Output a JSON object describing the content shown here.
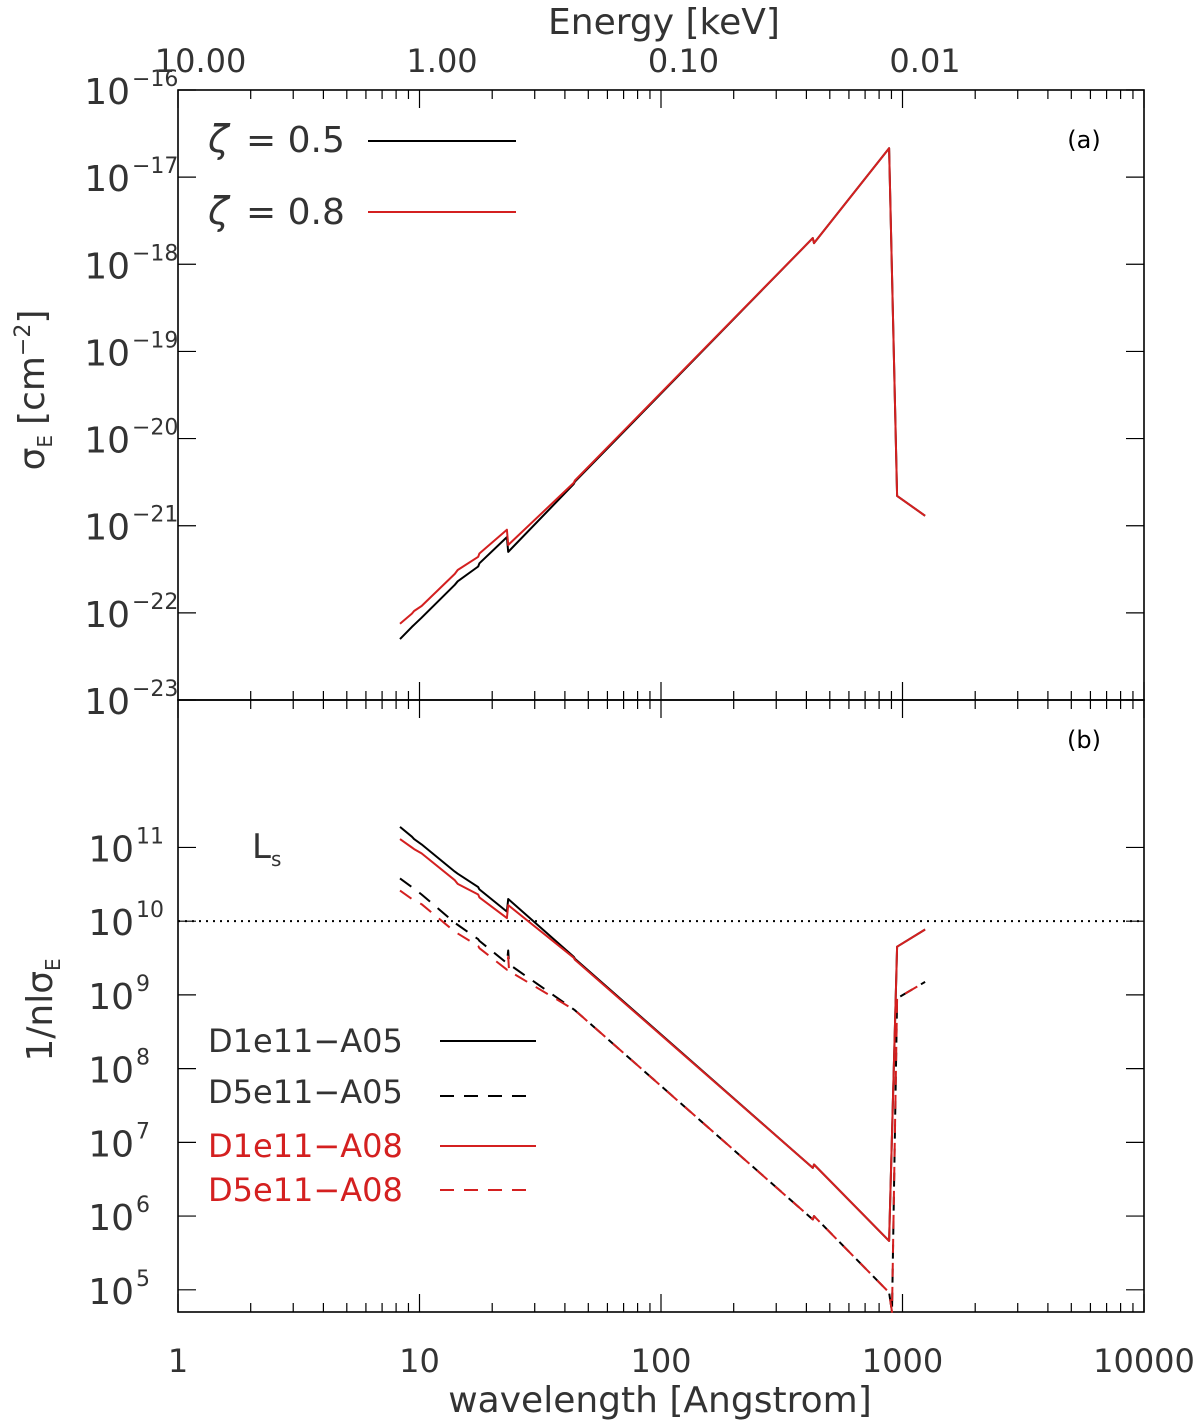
{
  "chart_data": [
    {
      "type": "line",
      "panel_label": "(a)",
      "x_axis_bottom": {
        "label": "wavelength [Angstrom]",
        "scale": "log",
        "range": [
          1,
          10000
        ],
        "tick_labels": [
          "1",
          "10",
          "100",
          "1000",
          "10000"
        ]
      },
      "x_axis_top": {
        "label": "Energy [keV]",
        "scale": "log",
        "tick_values": [
          10.0,
          1.0,
          0.1,
          0.01
        ],
        "tick_labels": [
          "10.00",
          "1.00",
          "0.10",
          "0.01"
        ]
      },
      "y_axis": {
        "label_main": "σ",
        "label_sub": "E",
        "label_unit": "[cm",
        "label_unit_sup": "−2",
        "label_unit_end": "]",
        "scale": "log",
        "range": [
          1e-23,
          1e-16
        ],
        "tick_exponents": [
          "−16",
          "−17",
          "−18",
          "−19",
          "−20",
          "−21",
          "−22",
          "−23"
        ]
      },
      "legend": [
        {
          "symbol": "ζ",
          "text": "= 0.5",
          "color": "#000000",
          "dash": "solid"
        },
        {
          "symbol": "ζ",
          "text": "= 0.8",
          "color": "#d42020",
          "dash": "solid"
        }
      ],
      "series": [
        {
          "name": "ζ = 0.5",
          "color": "#000000",
          "dash": "solid",
          "points": [
            [
              8.3,
              5e-23
            ],
            [
              9.3,
              6.9e-23
            ],
            [
              9.5,
              7.3e-23
            ],
            [
              10.2,
              8.8e-23
            ],
            [
              14.0,
              2.1e-22
            ],
            [
              14.4,
              2.3e-22
            ],
            [
              17.5,
              3.4e-22
            ],
            [
              17.7,
              3.7e-22
            ],
            [
              23.0,
              7.4e-22
            ],
            [
              23.3,
              5e-22
            ],
            [
              43.5,
              3e-21
            ],
            [
              44.0,
              3.2e-21
            ],
            [
              425,
              2e-18
            ],
            [
              430,
              1.75e-18
            ],
            [
              880,
              2.15e-17
            ],
            [
              950,
              2.2e-21
            ],
            [
              1240,
              1.3e-21
            ]
          ]
        },
        {
          "name": "ζ = 0.8",
          "color": "#d42020",
          "dash": "solid",
          "points": [
            [
              8.3,
              7.5e-23
            ],
            [
              9.3,
              9.8e-23
            ],
            [
              9.5,
              1.05e-22
            ],
            [
              10.2,
              1.2e-22
            ],
            [
              14.0,
              2.8e-22
            ],
            [
              14.4,
              3.1e-22
            ],
            [
              17.5,
              4.4e-22
            ],
            [
              17.7,
              4.8e-22
            ],
            [
              23.0,
              9e-22
            ],
            [
              23.3,
              6e-22
            ],
            [
              43.5,
              3.1e-21
            ],
            [
              44.0,
              3.3e-21
            ],
            [
              425,
              2e-18
            ],
            [
              430,
              1.75e-18
            ],
            [
              880,
              2.15e-17
            ],
            [
              950,
              2.2e-21
            ],
            [
              1240,
              1.3e-21
            ]
          ]
        }
      ]
    },
    {
      "type": "line",
      "panel_label": "(b)",
      "x_axis": {
        "label": "wavelength [Angstrom]",
        "scale": "log",
        "range": [
          1,
          10000
        ],
        "tick_labels": [
          "1",
          "10",
          "100",
          "1000",
          "10000"
        ]
      },
      "y_axis": {
        "label_main": "1/nlσ",
        "label_sub": "E",
        "scale": "log",
        "range": [
          50000,
          10000000000000
        ],
        "tick_exponents": [
          "11",
          "10",
          "9",
          "8",
          "7",
          "6",
          "5"
        ]
      },
      "reference_line": {
        "label": "L",
        "label_sub": "s",
        "y": 10000000000,
        "style": "dotted",
        "color": "#000000"
      },
      "legend": [
        {
          "text": "D1e11−A05",
          "color": "#000000",
          "dash": "solid"
        },
        {
          "text": "D5e11−A05",
          "color": "#000000",
          "dash": "dashed"
        },
        {
          "text": "D1e11−A08",
          "color": "#d42020",
          "dash": "solid"
        },
        {
          "text": "D5e11−A08",
          "color": "#d42020",
          "dash": "dashed"
        }
      ],
      "series": [
        {
          "name": "D1e11−A05",
          "color": "#000000",
          "dash": "solid",
          "points": [
            [
              8.3,
              190000000000
            ],
            [
              9.3,
              140000000000
            ],
            [
              9.5,
              130000000000
            ],
            [
              10.2,
              110000000000
            ],
            [
              14.0,
              47000000000
            ],
            [
              14.4,
              44000000000
            ],
            [
              17.5,
              29000000000
            ],
            [
              17.7,
              27000000000
            ],
            [
              23.0,
              13500000000
            ],
            [
              23.3,
              20000000000
            ],
            [
              43.5,
              3300000000
            ],
            [
              44.0,
              3100000000
            ],
            [
              425,
              4500000
            ],
            [
              430,
              5000000
            ],
            [
              880,
              460000
            ],
            [
              950,
              4500000000
            ],
            [
              1240,
              7700000000
            ]
          ]
        },
        {
          "name": "D5e11−A05",
          "color": "#000000",
          "dash": "dashed",
          "points": [
            [
              8.3,
              38000000000
            ],
            [
              9.3,
              29000000000
            ],
            [
              10.2,
              23000000000
            ],
            [
              14.0,
              9500000000
            ],
            [
              17.5,
              5700000000
            ],
            [
              17.7,
              5400000000
            ],
            [
              23.0,
              2700000000
            ],
            [
              23.3,
              4000000000
            ],
            [
              23.5,
              2600000000
            ],
            [
              44.0,
              620000000
            ],
            [
              425,
              900000
            ],
            [
              430,
              1000000
            ],
            [
              880,
              92000
            ],
            [
              905,
              50000
            ],
            [
              950,
              900000000
            ],
            [
              1240,
              1500000000
            ]
          ]
        },
        {
          "name": "D1e11−A08",
          "color": "#d42020",
          "dash": "solid",
          "points": [
            [
              8.3,
              130000000000
            ],
            [
              9.3,
              100000000000
            ],
            [
              9.5,
              95000000000
            ],
            [
              10.2,
              83000000000
            ],
            [
              14.0,
              36000000000
            ],
            [
              14.4,
              32000000000
            ],
            [
              17.5,
              23000000000
            ],
            [
              17.7,
              21000000000
            ],
            [
              23.0,
              11000000000
            ],
            [
              23.3,
              16500000000
            ],
            [
              43.5,
              3200000000
            ],
            [
              44.0,
              3000000000
            ],
            [
              425,
              4500000
            ],
            [
              430,
              5000000
            ],
            [
              880,
              460000
            ],
            [
              950,
              4500000000
            ],
            [
              1240,
              7700000000
            ]
          ]
        },
        {
          "name": "D5e11−A08",
          "color": "#d42020",
          "dash": "dashed",
          "points": [
            [
              8.3,
              26000000000
            ],
            [
              9.3,
              20000000000
            ],
            [
              10.2,
              17000000000
            ],
            [
              14.0,
              7200000000
            ],
            [
              17.5,
              4600000000
            ],
            [
              17.7,
              4300000000
            ],
            [
              23.0,
              2200000000
            ],
            [
              23.3,
              3300000000
            ],
            [
              23.5,
              2100000000
            ],
            [
              44.0,
              620000000
            ],
            [
              425,
              900000
            ],
            [
              430,
              1000000
            ],
            [
              880,
              92000
            ],
            [
              905,
              50000
            ],
            [
              950,
              900000000
            ],
            [
              1240,
              1500000000
            ]
          ]
        }
      ]
    }
  ]
}
